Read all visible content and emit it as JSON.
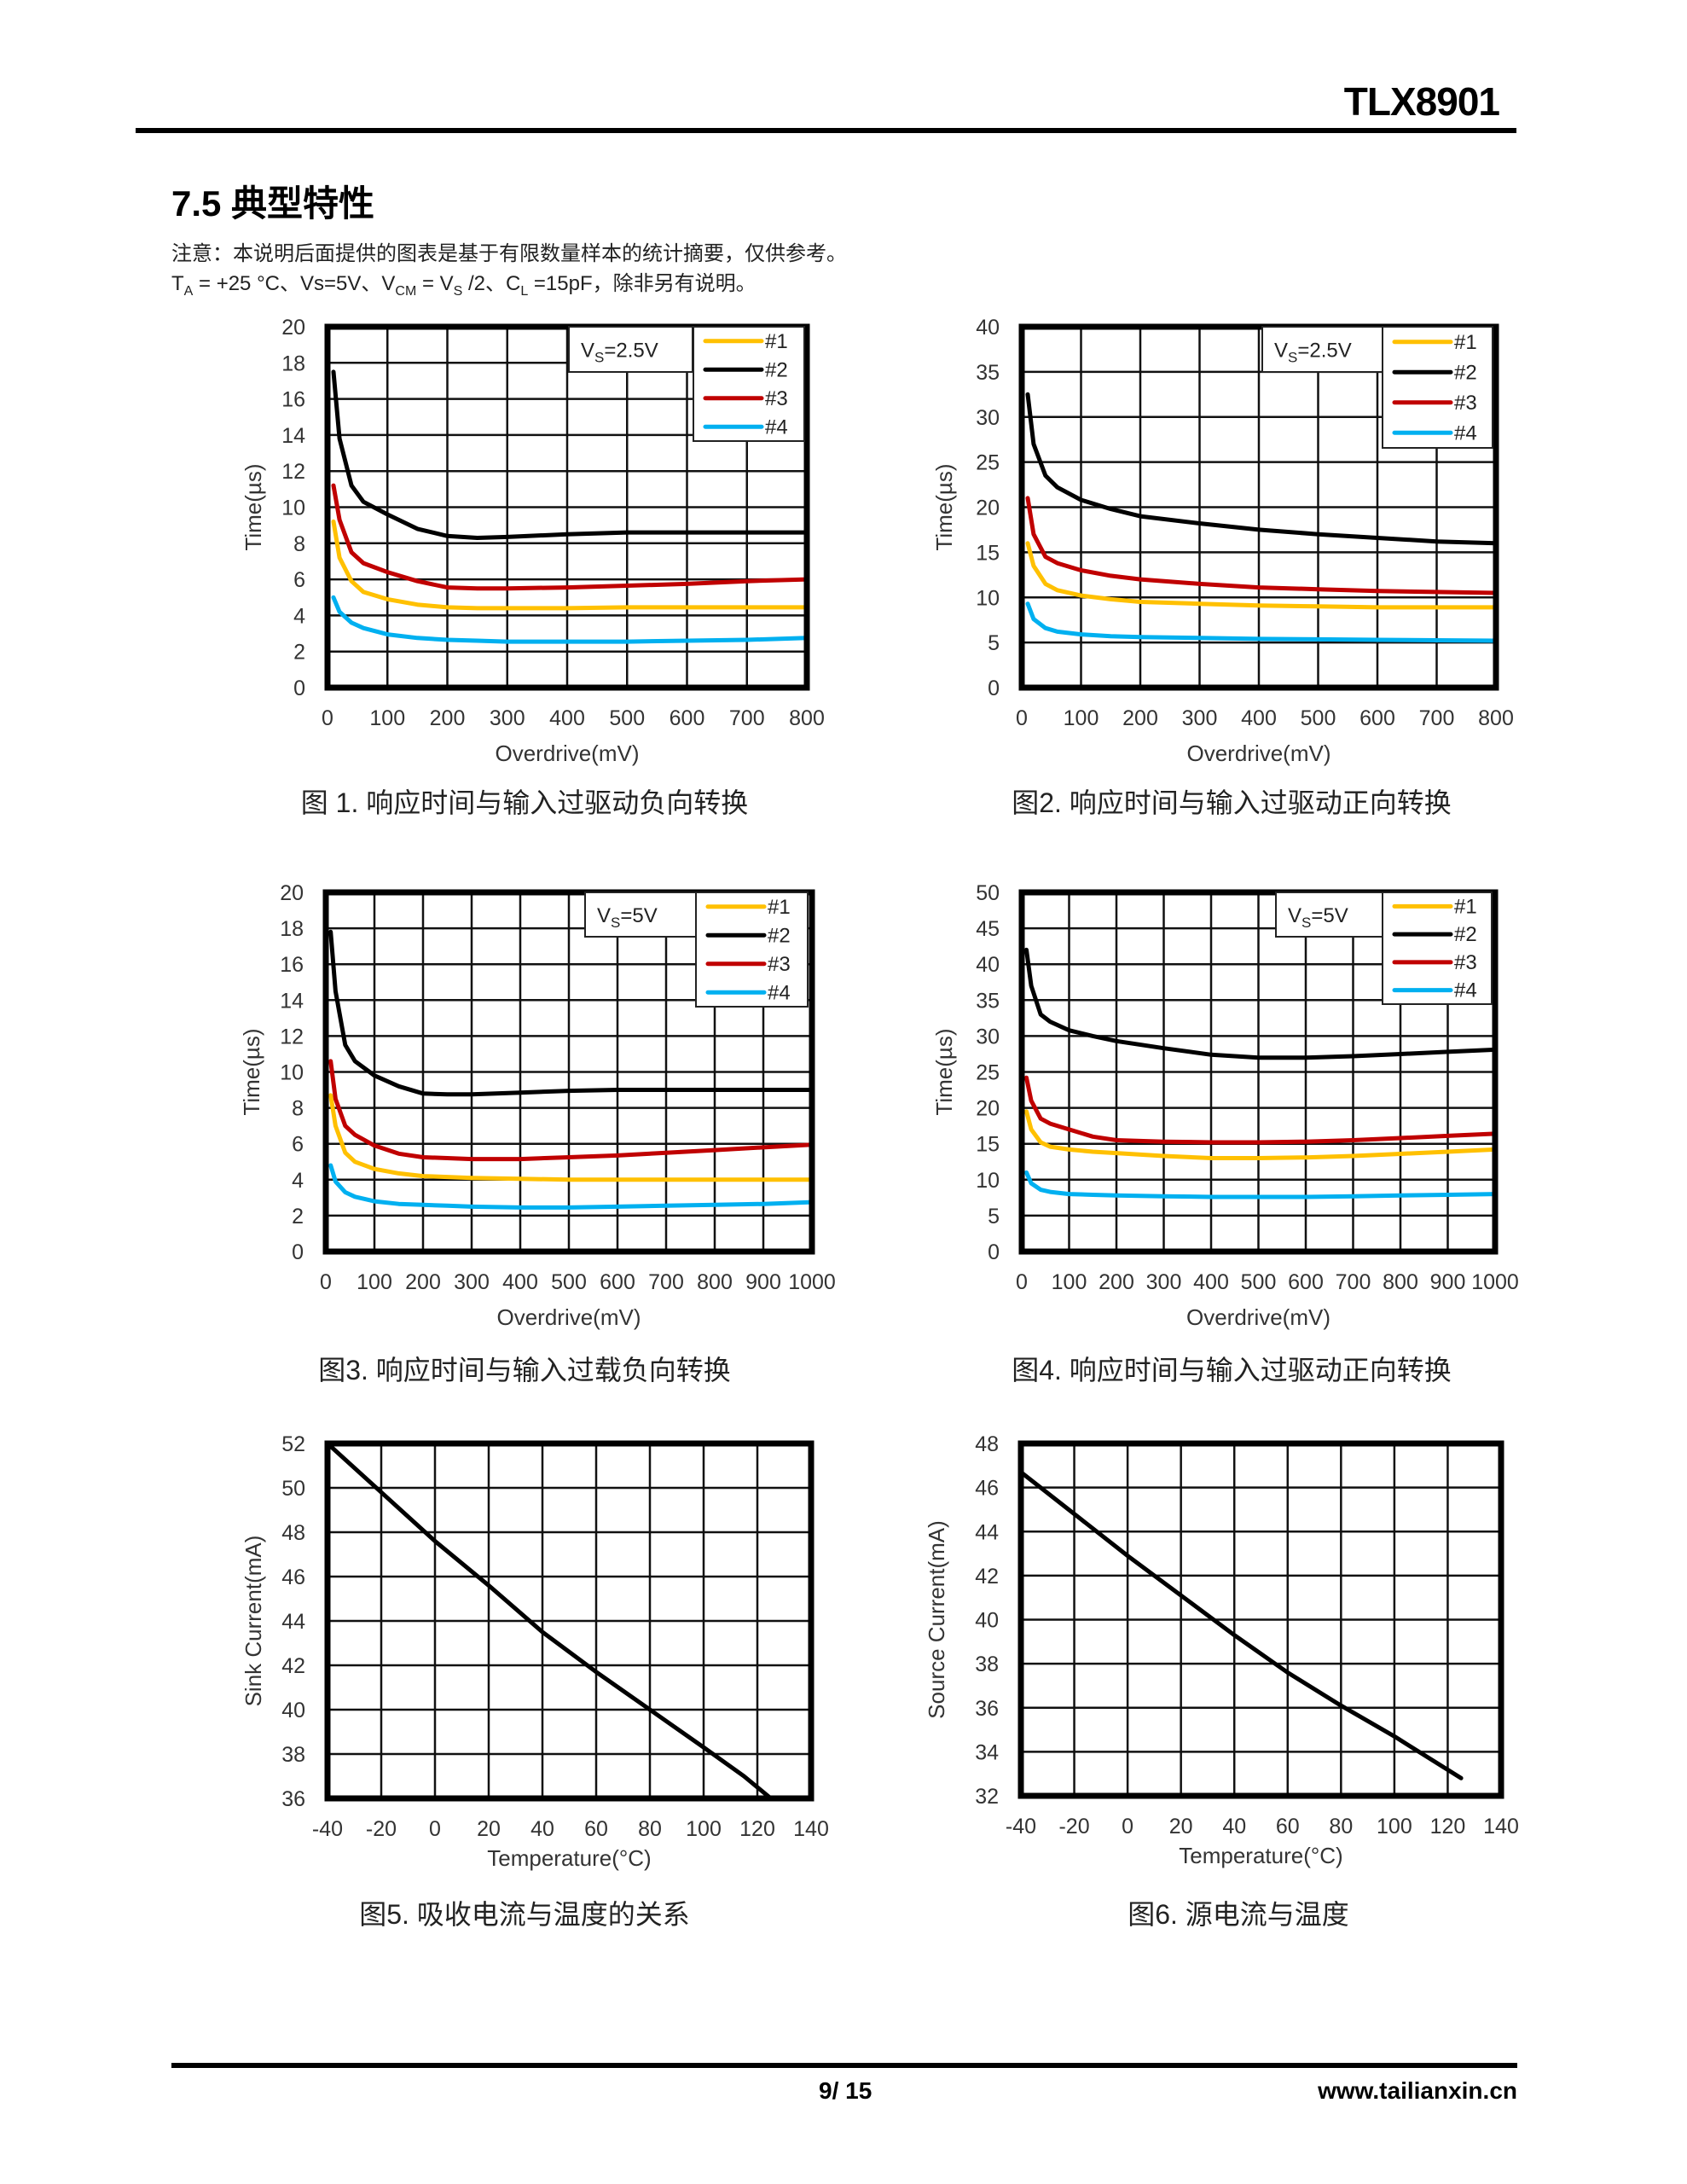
{
  "header": {
    "doc_title": "TLX8901"
  },
  "section": {
    "title": "7.5 典型特性",
    "note1": "注意：本说明后面提供的图表是基于有限数量样本的统计摘要，仅供参考。",
    "note2": {
      "ta": "T",
      "ta_sub": "A",
      "ta_rest": " = +25 °C、Vs=5V、V",
      "vcm_sub": "CM",
      "vcm_rest": " = V",
      "vs_sub": "S",
      "vs_rest": " /2、C",
      "cl_sub": "L",
      "cl_rest": " =15pF，除非另有说明。"
    }
  },
  "footer": {
    "page": "9/ 15",
    "url": "www.tailianxin.cn"
  },
  "colors": {
    "s1": "#FFC000",
    "s2": "#000000",
    "s3": "#C00000",
    "s4": "#00B0F0"
  },
  "chart_data": [
    {
      "type": "line",
      "caption": "图 1. 响应时间与输入过驱动负向转换",
      "xlabel": "Overdrive(mV)",
      "ylabel": "Time(µs)",
      "annotation": {
        "main": "V",
        "sub": "S",
        "rest": "=2.5V"
      },
      "xlim": [
        0,
        800
      ],
      "ylim": [
        0,
        20
      ],
      "xticks": [
        0,
        100,
        200,
        300,
        400,
        500,
        600,
        700,
        800
      ],
      "yticks": [
        0,
        2,
        4,
        6,
        8,
        10,
        12,
        14,
        16,
        18,
        20
      ],
      "grid": true,
      "legend_position": "top-right",
      "x": [
        10,
        20,
        40,
        60,
        100,
        150,
        200,
        250,
        300,
        400,
        500,
        600,
        700,
        800
      ],
      "series": [
        {
          "name": "#1",
          "values": [
            9.2,
            7.2,
            5.9,
            5.3,
            4.9,
            4.6,
            4.45,
            4.4,
            4.4,
            4.4,
            4.45,
            4.45,
            4.45,
            4.45
          ]
        },
        {
          "name": "#2",
          "values": [
            17.5,
            13.8,
            11.2,
            10.3,
            9.6,
            8.8,
            8.4,
            8.3,
            8.35,
            8.5,
            8.6,
            8.6,
            8.6,
            8.6
          ]
        },
        {
          "name": "#3",
          "values": [
            11.2,
            9.3,
            7.5,
            6.9,
            6.4,
            5.9,
            5.55,
            5.5,
            5.5,
            5.55,
            5.65,
            5.75,
            5.9,
            6.0
          ]
        },
        {
          "name": "#4",
          "values": [
            5.0,
            4.2,
            3.6,
            3.3,
            2.95,
            2.75,
            2.65,
            2.6,
            2.55,
            2.55,
            2.55,
            2.6,
            2.65,
            2.75
          ]
        }
      ]
    },
    {
      "type": "line",
      "caption": "图2. 响应时间与输入过驱动正向转换",
      "xlabel": "Overdrive(mV)",
      "ylabel": "Time(µs)",
      "annotation": {
        "main": "V",
        "sub": "S",
        "rest": "=2.5V"
      },
      "xlim": [
        0,
        800
      ],
      "ylim": [
        0,
        40
      ],
      "xticks": [
        0,
        100,
        200,
        300,
        400,
        500,
        600,
        700,
        800
      ],
      "yticks": [
        0,
        5,
        10,
        15,
        20,
        25,
        30,
        35,
        40
      ],
      "grid": true,
      "legend_position": "top-right",
      "x": [
        10,
        20,
        40,
        60,
        100,
        150,
        200,
        300,
        400,
        500,
        600,
        700,
        800
      ],
      "series": [
        {
          "name": "#1",
          "values": [
            16,
            13.5,
            11.5,
            10.8,
            10.2,
            9.8,
            9.5,
            9.3,
            9.1,
            9.0,
            8.9,
            8.9,
            8.9
          ]
        },
        {
          "name": "#2",
          "values": [
            32.5,
            27,
            23.5,
            22.2,
            20.8,
            19.8,
            19.0,
            18.2,
            17.5,
            17.0,
            16.6,
            16.2,
            16.0
          ]
        },
        {
          "name": "#3",
          "values": [
            21,
            17,
            14.5,
            13.8,
            13.0,
            12.4,
            12.0,
            11.5,
            11.1,
            10.9,
            10.7,
            10.6,
            10.5
          ]
        },
        {
          "name": "#4",
          "values": [
            9.3,
            7.6,
            6.6,
            6.2,
            5.9,
            5.7,
            5.6,
            5.5,
            5.4,
            5.35,
            5.3,
            5.25,
            5.2
          ]
        }
      ]
    },
    {
      "type": "line",
      "caption": "图3. 响应时间与输入过载负向转换",
      "xlabel": "Overdrive(mV)",
      "ylabel": "Time(µs)",
      "annotation": {
        "main": "V",
        "sub": "S",
        "rest": "=5V"
      },
      "xlim": [
        0,
        1000
      ],
      "ylim": [
        0,
        20
      ],
      "xticks": [
        0,
        100,
        200,
        300,
        400,
        500,
        600,
        700,
        800,
        900,
        1000
      ],
      "yticks": [
        0,
        2,
        4,
        6,
        8,
        10,
        12,
        14,
        16,
        18,
        20
      ],
      "grid": true,
      "legend_position": "top-right",
      "x": [
        10,
        20,
        40,
        60,
        100,
        150,
        200,
        250,
        300,
        400,
        500,
        600,
        700,
        800,
        900,
        1000
      ],
      "series": [
        {
          "name": "#1",
          "values": [
            8.7,
            7.0,
            5.5,
            5.0,
            4.6,
            4.35,
            4.2,
            4.15,
            4.1,
            4.05,
            4.0,
            4.0,
            4.0,
            4.0,
            4.0,
            4.0
          ]
        },
        {
          "name": "#2",
          "values": [
            17.8,
            14.5,
            11.5,
            10.6,
            9.8,
            9.2,
            8.8,
            8.75,
            8.75,
            8.85,
            8.95,
            9.0,
            9.0,
            9.0,
            9.0,
            9.0
          ]
        },
        {
          "name": "#3",
          "values": [
            10.6,
            8.5,
            7.0,
            6.5,
            5.9,
            5.45,
            5.25,
            5.2,
            5.15,
            5.15,
            5.25,
            5.35,
            5.5,
            5.65,
            5.8,
            5.95
          ]
        },
        {
          "name": "#4",
          "values": [
            4.8,
            3.9,
            3.3,
            3.05,
            2.8,
            2.65,
            2.6,
            2.55,
            2.5,
            2.45,
            2.45,
            2.5,
            2.55,
            2.6,
            2.65,
            2.75
          ]
        }
      ]
    },
    {
      "type": "line",
      "caption": "图4. 响应时间与输入过驱动正向转换",
      "xlabel": "Overdrive(mV)",
      "ylabel": "Time(µs)",
      "annotation": {
        "main": "V",
        "sub": "S",
        "rest": "=5V"
      },
      "xlim": [
        0,
        1000
      ],
      "ylim": [
        0,
        50
      ],
      "xticks": [
        0,
        100,
        200,
        300,
        400,
        500,
        600,
        700,
        800,
        900,
        1000
      ],
      "yticks": [
        0,
        5,
        10,
        15,
        20,
        25,
        30,
        35,
        40,
        45,
        50
      ],
      "grid": true,
      "legend_position": "top-right",
      "x": [
        10,
        20,
        40,
        60,
        100,
        150,
        200,
        300,
        400,
        500,
        600,
        700,
        800,
        900,
        1000
      ],
      "series": [
        {
          "name": "#1",
          "values": [
            19.5,
            17,
            15.2,
            14.6,
            14.2,
            13.9,
            13.7,
            13.3,
            13.0,
            13.0,
            13.1,
            13.3,
            13.6,
            13.9,
            14.2
          ]
        },
        {
          "name": "#2",
          "values": [
            42,
            37,
            33,
            32,
            30.8,
            30,
            29.3,
            28.3,
            27.4,
            27.0,
            27.0,
            27.2,
            27.5,
            27.8,
            28.1
          ]
        },
        {
          "name": "#3",
          "values": [
            24.2,
            21,
            18.5,
            17.8,
            17.0,
            16.0,
            15.5,
            15.3,
            15.2,
            15.2,
            15.3,
            15.5,
            15.8,
            16.1,
            16.4
          ]
        },
        {
          "name": "#4",
          "values": [
            11,
            9.5,
            8.6,
            8.3,
            8.0,
            7.9,
            7.8,
            7.7,
            7.6,
            7.6,
            7.6,
            7.7,
            7.8,
            7.9,
            8.0
          ]
        }
      ]
    },
    {
      "type": "line",
      "caption": "图5. 吸收电流与温度的关系",
      "xlabel": "Temperature(°C)",
      "ylabel": "Sink  Current(mA)",
      "xlim": [
        -40,
        140
      ],
      "ylim": [
        36,
        52
      ],
      "xticks": [
        -40,
        -20,
        0,
        20,
        40,
        60,
        80,
        100,
        120,
        140
      ],
      "yticks": [
        36,
        38,
        40,
        42,
        44,
        46,
        48,
        50,
        52
      ],
      "grid": true,
      "x": [
        -40,
        -20,
        0,
        20,
        40,
        60,
        80,
        100,
        115,
        125
      ],
      "series": [
        {
          "name": "Sink Current",
          "values": [
            52.0,
            49.8,
            47.6,
            45.6,
            43.5,
            41.7,
            40.0,
            38.3,
            37.0,
            36.0
          ]
        }
      ]
    },
    {
      "type": "line",
      "caption": "图6. 源电流与温度",
      "xlabel": "Temperature(°C)",
      "ylabel": "Source  Current(mA)",
      "xlim": [
        -40,
        140
      ],
      "ylim": [
        32,
        48
      ],
      "xticks": [
        -40,
        -20,
        0,
        20,
        40,
        60,
        80,
        100,
        120,
        140
      ],
      "yticks": [
        32,
        34,
        36,
        38,
        40,
        42,
        44,
        46,
        48
      ],
      "grid": true,
      "x": [
        -40,
        -20,
        0,
        20,
        40,
        60,
        80,
        100,
        125
      ],
      "series": [
        {
          "name": "Source Current",
          "values": [
            46.7,
            44.8,
            42.9,
            41.1,
            39.3,
            37.6,
            36.1,
            34.7,
            32.8
          ]
        }
      ]
    }
  ]
}
